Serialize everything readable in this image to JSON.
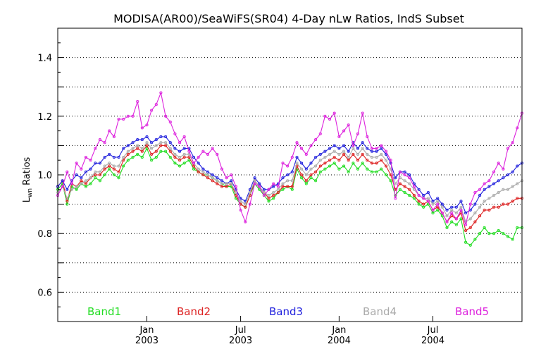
{
  "chart_data": {
    "type": "line",
    "title": "MODISA(AR00)/SeaWiFS(SR04) 4-Day nLw Ratios, IndS Subset",
    "ylabel_main": "L",
    "ylabel_sub": "wn",
    "ylabel_rest": " Ratios",
    "xlabel": "",
    "ylim": [
      0.5,
      1.5
    ],
    "x_range": [
      0,
      99
    ],
    "y_ticks": [
      0.6,
      0.8,
      1.0,
      1.2,
      1.4
    ],
    "y_tick_labels": [
      "0.6",
      "0.8",
      "1.0",
      "1.2",
      "1.4"
    ],
    "y_gridlines": [
      0.6,
      0.7,
      0.8,
      0.9,
      1.0,
      1.1,
      1.2,
      1.3,
      1.4
    ],
    "grid": "horizontal dotted",
    "x_ticks": [
      {
        "x": 19,
        "line1": "Jan",
        "line2": "2003"
      },
      {
        "x": 39,
        "line1": "Jul",
        "line2": "2003"
      },
      {
        "x": 60,
        "line1": "Jan",
        "line2": "2004"
      },
      {
        "x": 80,
        "line1": "Jul",
        "line2": "2004"
      }
    ],
    "legend_placement": "bottom",
    "series": [
      {
        "name": "Band1",
        "color": "#22dd22",
        "values": [
          0.95,
          0.97,
          0.9,
          0.96,
          0.95,
          0.97,
          0.96,
          0.97,
          0.99,
          0.98,
          1.0,
          1.02,
          1.0,
          0.99,
          1.03,
          1.05,
          1.06,
          1.07,
          1.06,
          1.09,
          1.05,
          1.06,
          1.08,
          1.08,
          1.06,
          1.04,
          1.03,
          1.04,
          1.05,
          1.02,
          1.01,
          1.0,
          1.0,
          0.99,
          0.98,
          0.97,
          0.96,
          0.96,
          0.92,
          0.9,
          0.89,
          0.93,
          0.97,
          0.95,
          0.93,
          0.91,
          0.92,
          0.94,
          0.95,
          0.96,
          0.95,
          1.02,
          0.99,
          0.97,
          0.99,
          0.98,
          1.01,
          1.02,
          1.03,
          1.04,
          1.02,
          1.03,
          1.01,
          1.04,
          1.02,
          1.04,
          1.02,
          1.01,
          1.01,
          1.02,
          1.0,
          0.98,
          0.93,
          0.95,
          0.94,
          0.93,
          0.92,
          0.9,
          0.89,
          0.9,
          0.87,
          0.88,
          0.86,
          0.82,
          0.84,
          0.83,
          0.85,
          0.77,
          0.76,
          0.78,
          0.8,
          0.82,
          0.8,
          0.8,
          0.81,
          0.8,
          0.79,
          0.78,
          0.82,
          0.82
        ]
      },
      {
        "name": "Band2",
        "color": "#dd2222",
        "values": [
          0.96,
          0.98,
          0.91,
          0.97,
          0.96,
          0.98,
          0.97,
          0.99,
          1.0,
          1.0,
          1.02,
          1.03,
          1.02,
          1.01,
          1.05,
          1.07,
          1.08,
          1.09,
          1.08,
          1.1,
          1.07,
          1.08,
          1.1,
          1.1,
          1.08,
          1.06,
          1.05,
          1.06,
          1.06,
          1.03,
          1.01,
          1.0,
          0.99,
          0.98,
          0.97,
          0.96,
          0.96,
          0.97,
          0.93,
          0.9,
          0.89,
          0.93,
          0.98,
          0.96,
          0.94,
          0.92,
          0.93,
          0.94,
          0.96,
          0.96,
          0.96,
          1.03,
          1.0,
          0.98,
          1.0,
          1.01,
          1.03,
          1.04,
          1.05,
          1.06,
          1.05,
          1.07,
          1.05,
          1.07,
          1.05,
          1.07,
          1.05,
          1.04,
          1.04,
          1.05,
          1.03,
          1.0,
          0.95,
          0.97,
          0.96,
          0.95,
          0.93,
          0.91,
          0.9,
          0.91,
          0.88,
          0.89,
          0.87,
          0.84,
          0.86,
          0.85,
          0.87,
          0.81,
          0.82,
          0.84,
          0.86,
          0.88,
          0.88,
          0.89,
          0.89,
          0.9,
          0.9,
          0.91,
          0.92,
          0.92
        ]
      },
      {
        "name": "Band3",
        "color": "#2222dd",
        "values": [
          0.96,
          0.98,
          0.95,
          0.98,
          1.0,
          0.99,
          1.01,
          1.02,
          1.04,
          1.04,
          1.06,
          1.07,
          1.06,
          1.06,
          1.09,
          1.1,
          1.11,
          1.12,
          1.12,
          1.13,
          1.11,
          1.12,
          1.13,
          1.13,
          1.11,
          1.09,
          1.08,
          1.09,
          1.09,
          1.06,
          1.04,
          1.02,
          1.01,
          1.0,
          0.99,
          0.98,
          0.97,
          0.98,
          0.95,
          0.92,
          0.91,
          0.95,
          0.99,
          0.97,
          0.95,
          0.95,
          0.96,
          0.97,
          0.99,
          1.0,
          1.01,
          1.06,
          1.04,
          1.02,
          1.04,
          1.06,
          1.07,
          1.08,
          1.09,
          1.1,
          1.09,
          1.1,
          1.08,
          1.11,
          1.09,
          1.11,
          1.09,
          1.08,
          1.08,
          1.09,
          1.07,
          1.04,
          0.99,
          1.01,
          1.01,
          1.0,
          0.97,
          0.95,
          0.93,
          0.94,
          0.91,
          0.92,
          0.9,
          0.88,
          0.89,
          0.89,
          0.91,
          0.87,
          0.88,
          0.9,
          0.93,
          0.95,
          0.96,
          0.97,
          0.98,
          0.99,
          1.0,
          1.01,
          1.03,
          1.04
        ]
      },
      {
        "name": "Band4",
        "color": "#aaaaaa",
        "values": [
          0.94,
          0.96,
          0.92,
          0.95,
          0.96,
          0.97,
          0.98,
          0.99,
          1.01,
          1.01,
          1.03,
          1.04,
          1.03,
          1.03,
          1.06,
          1.08,
          1.09,
          1.1,
          1.09,
          1.11,
          1.09,
          1.1,
          1.11,
          1.11,
          1.09,
          1.07,
          1.06,
          1.07,
          1.07,
          1.04,
          1.02,
          1.01,
          1.0,
          0.99,
          0.98,
          0.97,
          0.97,
          0.97,
          0.94,
          0.91,
          0.9,
          0.94,
          0.98,
          0.96,
          0.94,
          0.93,
          0.94,
          0.95,
          0.97,
          0.98,
          0.98,
          1.04,
          1.02,
          1.0,
          1.02,
          1.03,
          1.05,
          1.06,
          1.07,
          1.08,
          1.07,
          1.08,
          1.06,
          1.09,
          1.07,
          1.09,
          1.07,
          1.06,
          1.06,
          1.07,
          1.05,
          1.02,
          0.97,
          0.99,
          0.98,
          0.97,
          0.95,
          0.93,
          0.92,
          0.92,
          0.9,
          0.91,
          0.89,
          0.86,
          0.88,
          0.87,
          0.89,
          0.84,
          0.85,
          0.87,
          0.89,
          0.91,
          0.92,
          0.93,
          0.94,
          0.95,
          0.95,
          0.96,
          0.97,
          0.98
        ]
      },
      {
        "name": "Band5",
        "color": "#dd22dd",
        "values": [
          0.93,
          0.96,
          1.01,
          0.97,
          1.04,
          1.02,
          1.06,
          1.05,
          1.09,
          1.12,
          1.11,
          1.15,
          1.13,
          1.19,
          1.19,
          1.2,
          1.2,
          1.25,
          1.16,
          1.17,
          1.22,
          1.24,
          1.28,
          1.2,
          1.18,
          1.14,
          1.11,
          1.13,
          1.08,
          1.04,
          1.06,
          1.08,
          1.07,
          1.09,
          1.07,
          1.02,
          0.99,
          1.0,
          0.96,
          0.88,
          0.84,
          0.9,
          0.97,
          0.96,
          0.93,
          0.95,
          0.97,
          0.96,
          1.04,
          1.03,
          1.06,
          1.11,
          1.09,
          1.07,
          1.1,
          1.12,
          1.14,
          1.2,
          1.19,
          1.21,
          1.13,
          1.15,
          1.17,
          1.1,
          1.14,
          1.21,
          1.13,
          1.09,
          1.09,
          1.1,
          1.08,
          1.05,
          0.92,
          1.01,
          1.0,
          0.99,
          0.96,
          0.93,
          0.92,
          0.91,
          0.88,
          0.9,
          0.87,
          0.84,
          0.87,
          0.85,
          0.88,
          0.83,
          0.9,
          0.94,
          0.95,
          0.97,
          0.98,
          1.01,
          1.04,
          1.02,
          1.09,
          1.11,
          1.16,
          1.21
        ]
      }
    ]
  }
}
